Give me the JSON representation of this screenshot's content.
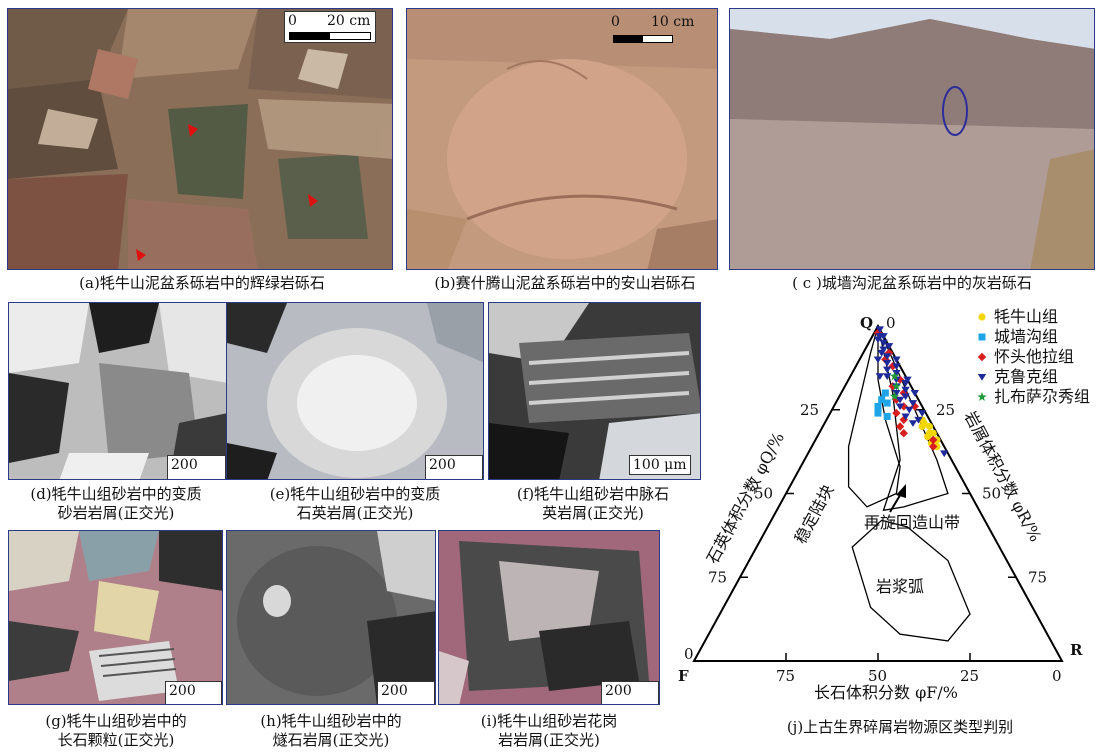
{
  "figure": {
    "panels": [
      {
        "id": "a",
        "caption_lines": [
          "(a)牦牛山泥盆系砾岩中的辉绿岩砾石"
        ],
        "scale": {
          "start": "0",
          "end": "20 cm"
        },
        "palette": [
          "#7a5a44",
          "#4f5a44",
          "#a88a70",
          "#c7a98a"
        ]
      },
      {
        "id": "b",
        "caption_lines": [
          "(b)赛什腾山泥盆系砾岩中的安山岩砾石"
        ],
        "scale": {
          "start": "0",
          "end": "10 cm"
        },
        "palette": [
          "#c79d82",
          "#b98a70",
          "#d7b49a"
        ]
      },
      {
        "id": "c",
        "caption_lines": [
          "( c )城墙沟泥盆系砾岩中的灰岩砾石"
        ],
        "palette": [
          "#a48d86",
          "#8f7c78",
          "#c0b0aa",
          "#cfd8e4"
        ]
      },
      {
        "id": "d",
        "caption_lines": [
          "(d)牦牛山组砂岩中的变质",
          "砂岩岩屑(正交光)"
        ],
        "scale_label": "200 μm",
        "palette": [
          "#e8e8e8",
          "#222",
          "#9a9a9a"
        ]
      },
      {
        "id": "e",
        "caption_lines": [
          "(e)牦牛山组砂岩中的变质",
          "石英岩屑(正交光)"
        ],
        "scale_label": "200 μm",
        "palette": [
          "#d0d0d0",
          "#2a2a2a",
          "#aab0b8"
        ]
      },
      {
        "id": "f",
        "caption_lines": [
          "(f)牦牛山组砂岩中脉石",
          "英岩屑(正交光)"
        ],
        "scale_label": "100 μm",
        "palette": [
          "#1e1e1e",
          "#6a6a6a",
          "#d8d8d8"
        ]
      },
      {
        "id": "g",
        "caption_lines": [
          "(g)牦牛山组砂岩中的",
          "长石颗粒(正交光)"
        ],
        "scale_label": "200 μm",
        "palette": [
          "#c07a86",
          "#e0dcd0",
          "#3a3a3a",
          "#a89060"
        ]
      },
      {
        "id": "h",
        "caption_lines": [
          "(h)牦牛山组砂岩中的",
          "燧石岩屑(正交光)"
        ],
        "scale_label": "200 μm",
        "palette": [
          "#5a5a5a",
          "#c8c8c8",
          "#1e1e1e"
        ]
      },
      {
        "id": "i",
        "caption_lines": [
          "(i)牦牛山组砂岩花岗",
          "岩岩屑(正交光)"
        ],
        "scale_label": "200 μm",
        "palette": [
          "#b06a80",
          "#3a3a3a",
          "#d0c6c8"
        ]
      }
    ]
  },
  "chart_data": {
    "type": "scatter",
    "subtype": "ternary",
    "caption": "(j)上古生界碎屑岩物源区类型判别",
    "vertices": {
      "top": "Q",
      "left": "F",
      "right": "R"
    },
    "left_axis_label": "石英体积分数 φQ/%",
    "right_axis_label": "岩屑体积分数 φR/%",
    "bottom_axis_label": "长石体积分数 φF/%",
    "left_ticks": [
      "0",
      "25",
      "50",
      "75"
    ],
    "right_ticks": [
      "0",
      "25",
      "50",
      "75"
    ],
    "bottom_ticks": [
      "75",
      "50",
      "25",
      "0"
    ],
    "top_tick": "0",
    "fields": [
      {
        "name": "稳定陆块"
      },
      {
        "name": "再旋回造山带"
      },
      {
        "name": "岩浆弧"
      }
    ],
    "series": [
      {
        "name": "牦牛山组",
        "color": "#f2d600",
        "marker": "circle",
        "points": [
          [
            72,
            2,
            26
          ],
          [
            70,
            1,
            29
          ],
          [
            68,
            2,
            30
          ],
          [
            66,
            1,
            33
          ],
          [
            64,
            2,
            34
          ],
          [
            70,
            3,
            27
          ],
          [
            67,
            3,
            30
          ],
          [
            65,
            3,
            32
          ],
          [
            68,
            1,
            31
          ],
          [
            71,
            2,
            27
          ]
        ]
      },
      {
        "name": "城墙沟组",
        "color": "#1ea5e8",
        "marker": "square",
        "points": [
          [
            78,
            10,
            12
          ],
          [
            76,
            12,
            12
          ],
          [
            74,
            13,
            13
          ],
          [
            80,
            8,
            12
          ],
          [
            77,
            9,
            14
          ],
          [
            73,
            11,
            16
          ]
        ]
      },
      {
        "name": "怀头他拉组",
        "color": "#d81e1e",
        "marker": "diamond",
        "points": [
          [
            98,
            1,
            1
          ],
          [
            92,
            1,
            7
          ],
          [
            88,
            2,
            10
          ],
          [
            82,
            5,
            13
          ],
          [
            78,
            6,
            16
          ],
          [
            74,
            8,
            18
          ],
          [
            70,
            9,
            21
          ],
          [
            68,
            9,
            23
          ],
          [
            72,
            7,
            21
          ],
          [
            76,
            5,
            19
          ],
          [
            80,
            3,
            17
          ],
          [
            84,
            2,
            14
          ],
          [
            66,
            2,
            32
          ],
          [
            64,
            3,
            33
          ],
          [
            76,
            2,
            22
          ],
          [
            90,
            3,
            7
          ]
        ]
      },
      {
        "name": "克鲁克组",
        "color": "#1e2a9a",
        "marker": "triangle-down",
        "points": [
          [
            99,
            0,
            1
          ],
          [
            97,
            1,
            2
          ],
          [
            95,
            1,
            4
          ],
          [
            96,
            2,
            2
          ],
          [
            93,
            2,
            5
          ],
          [
            91,
            2,
            7
          ],
          [
            94,
            0,
            6
          ],
          [
            92,
            3,
            5
          ],
          [
            89,
            3,
            8
          ],
          [
            88,
            1,
            11
          ],
          [
            86,
            2,
            12
          ],
          [
            87,
            4,
            9
          ],
          [
            85,
            5,
            10
          ],
          [
            84,
            3,
            13
          ],
          [
            83,
            1,
            16
          ],
          [
            82,
            4,
            14
          ],
          [
            80,
            5,
            15
          ],
          [
            81,
            2,
            17
          ],
          [
            79,
            3,
            18
          ],
          [
            78,
            5,
            17
          ],
          [
            77,
            2,
            21
          ],
          [
            76,
            6,
            18
          ],
          [
            75,
            4,
            21
          ],
          [
            74,
            1,
            25
          ],
          [
            73,
            6,
            21
          ],
          [
            72,
            3,
            25
          ],
          [
            71,
            5,
            24
          ],
          [
            80,
            0,
            20
          ],
          [
            90,
            0,
            10
          ],
          [
            97,
            0,
            3
          ],
          [
            62,
            1,
            37
          ],
          [
            85,
            7,
            8
          ],
          [
            90,
            5,
            5
          ],
          [
            84,
            0,
            16
          ]
        ]
      },
      {
        "name": "扎布萨尕秀组",
        "color": "#1f9a3a",
        "marker": "star",
        "points": [
          [
            82,
            4,
            14
          ],
          [
            79,
            6,
            15
          ],
          [
            85,
            3,
            12
          ]
        ]
      }
    ]
  }
}
